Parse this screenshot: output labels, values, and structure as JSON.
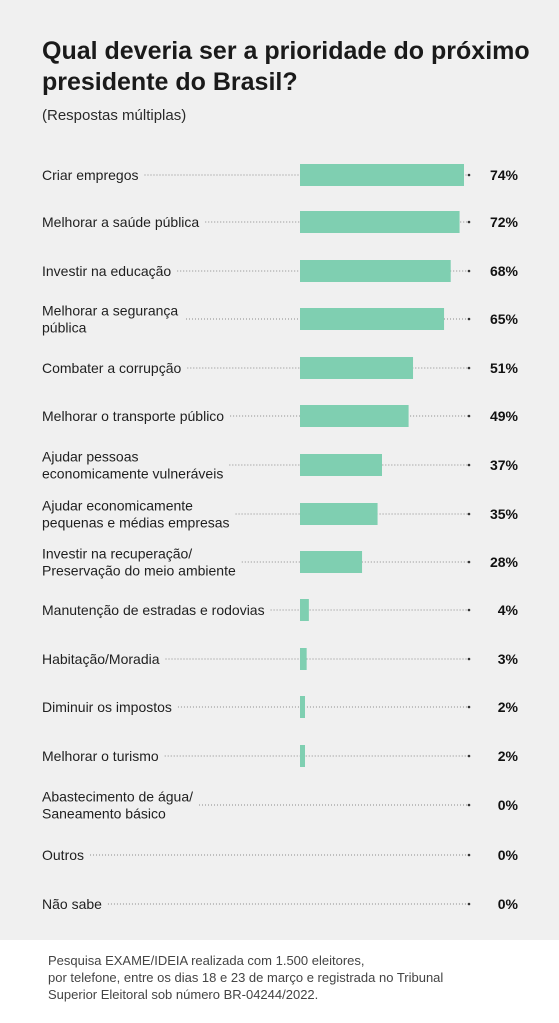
{
  "header": {
    "title": "Qual deveria ser a prioridade do próximo presidente do Brasil?",
    "subtitle": "(Respostas múltiplas)"
  },
  "colors": {
    "bar": "#7fcfb1",
    "background": "#f0f0f0",
    "dots": "#8a8a8a"
  },
  "chart_data": {
    "type": "bar",
    "orientation": "horizontal",
    "categories": [
      [
        "Criar empregos"
      ],
      [
        "Melhorar a saúde pública"
      ],
      [
        "Investir na educação"
      ],
      [
        "Melhorar a segurança",
        "pública"
      ],
      [
        "Combater a corrupção"
      ],
      [
        "Melhorar o transporte público"
      ],
      [
        "Ajudar pessoas",
        "economicamente vulneráveis"
      ],
      [
        "Ajudar economicamente",
        "pequenas e médias empresas"
      ],
      [
        "Investir na recuperação/",
        "Preservação do meio ambiente"
      ],
      [
        "Manutenção de estradas e rodovias"
      ],
      [
        "Habitação/Moradia"
      ],
      [
        "Diminuir os impostos"
      ],
      [
        "Melhorar o turismo"
      ],
      [
        "Abastecimento de água/",
        "Saneamento básico"
      ],
      [
        "Outros"
      ],
      [
        "Não sabe"
      ]
    ],
    "values": [
      74,
      72,
      68,
      65,
      51,
      49,
      37,
      35,
      28,
      4,
      3,
      2,
      2,
      0,
      0,
      0
    ],
    "value_labels": [
      "74%",
      "72%",
      "68%",
      "65%",
      "51%",
      "49%",
      "37%",
      "35%",
      "28%",
      "4%",
      "3%",
      "2%",
      "2%",
      "0%",
      "0%",
      "0%"
    ],
    "unit": "%",
    "xlim": [
      0,
      74
    ],
    "grid": false,
    "legend": "none"
  },
  "footer": {
    "lines": [
      "Pesquisa EXAME/IDEIA realizada com 1.500 eleitores,",
      "por telefone, entre os dias 18 e 23 de março e registrada no Tribunal",
      "Superior Eleitoral sob número BR-04244/2022."
    ]
  }
}
